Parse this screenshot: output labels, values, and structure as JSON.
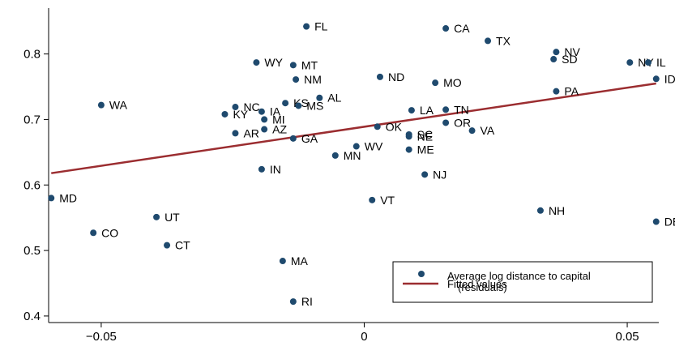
{
  "chart_data": {
    "type": "scatter",
    "title": "",
    "xlabel": "",
    "ylabel": "",
    "xlim": [
      -0.06,
      0.056
    ],
    "ylim": [
      0.39,
      0.87
    ],
    "x_ticks": [
      -0.05,
      0,
      0.05
    ],
    "x_tick_labels": [
      "−0.05",
      "0",
      "0.05"
    ],
    "y_ticks": [
      0.4,
      0.5,
      0.6,
      0.7,
      0.8
    ],
    "y_tick_labels": [
      "0.4",
      "0.5",
      "0.6",
      "0.7",
      "0.8"
    ],
    "grid": false,
    "legend_position": "bottom-right",
    "colors": {
      "points": "#1f4a6e",
      "fit": "#9b2d30"
    },
    "series": [
      {
        "name": "Average log distance to capital\n(residuals)",
        "kind": "scatter",
        "points": [
          {
            "label": "FL",
            "x": -0.011,
            "y": 0.842
          },
          {
            "label": "CA",
            "x": 0.0155,
            "y": 0.839
          },
          {
            "label": "TX",
            "x": 0.0235,
            "y": 0.82
          },
          {
            "label": "NV",
            "x": 0.0365,
            "y": 0.803
          },
          {
            "label": "SD",
            "x": 0.036,
            "y": 0.792
          },
          {
            "label": "NY",
            "x": 0.0505,
            "y": 0.787
          },
          {
            "label": "IL",
            "x": 0.054,
            "y": 0.787
          },
          {
            "label": "ID",
            "x": 0.0555,
            "y": 0.762
          },
          {
            "label": "WY",
            "x": -0.0205,
            "y": 0.787
          },
          {
            "label": "MT",
            "x": -0.0135,
            "y": 0.783
          },
          {
            "label": "NM",
            "x": -0.013,
            "y": 0.761
          },
          {
            "label": "ND",
            "x": 0.003,
            "y": 0.765
          },
          {
            "label": "MO",
            "x": 0.0135,
            "y": 0.756
          },
          {
            "label": "PA",
            "x": 0.0365,
            "y": 0.743
          },
          {
            "label": "AL",
            "x": -0.0085,
            "y": 0.733
          },
          {
            "label": "KS",
            "x": -0.015,
            "y": 0.725
          },
          {
            "label": "MS",
            "x": -0.0125,
            "y": 0.721
          },
          {
            "label": "WA",
            "x": -0.05,
            "y": 0.722
          },
          {
            "label": "NC",
            "x": -0.0245,
            "y": 0.719
          },
          {
            "label": "IA",
            "x": -0.0195,
            "y": 0.712
          },
          {
            "label": "KY",
            "x": -0.0265,
            "y": 0.708
          },
          {
            "label": "MI",
            "x": -0.019,
            "y": 0.7
          },
          {
            "label": "LA",
            "x": 0.009,
            "y": 0.714
          },
          {
            "label": "TN",
            "x": 0.0155,
            "y": 0.715
          },
          {
            "label": "OR",
            "x": 0.0155,
            "y": 0.695
          },
          {
            "label": "OK",
            "x": 0.0025,
            "y": 0.689
          },
          {
            "label": "AZ",
            "x": -0.019,
            "y": 0.685
          },
          {
            "label": "VA",
            "x": 0.0205,
            "y": 0.683
          },
          {
            "label": "AR",
            "x": -0.0245,
            "y": 0.679
          },
          {
            "label": "SC",
            "x": 0.0085,
            "y": 0.677
          },
          {
            "label": "NE",
            "x": 0.0085,
            "y": 0.674
          },
          {
            "label": "GA",
            "x": -0.0135,
            "y": 0.671
          },
          {
            "label": "WV",
            "x": -0.0015,
            "y": 0.659
          },
          {
            "label": "ME",
            "x": 0.0085,
            "y": 0.654
          },
          {
            "label": "MN",
            "x": -0.0055,
            "y": 0.645
          },
          {
            "label": "IN",
            "x": -0.0195,
            "y": 0.624
          },
          {
            "label": "NJ",
            "x": 0.0115,
            "y": 0.616
          },
          {
            "label": "MD",
            "x": -0.0595,
            "y": 0.58
          },
          {
            "label": "VT",
            "x": 0.0015,
            "y": 0.577
          },
          {
            "label": "NH",
            "x": 0.0335,
            "y": 0.561
          },
          {
            "label": "UT",
            "x": -0.0395,
            "y": 0.551
          },
          {
            "label": "DE",
            "x": 0.0555,
            "y": 0.544
          },
          {
            "label": "CO",
            "x": -0.0515,
            "y": 0.527
          },
          {
            "label": "CT",
            "x": -0.0375,
            "y": 0.508
          },
          {
            "label": "MA",
            "x": -0.0155,
            "y": 0.484
          },
          {
            "label": "RI",
            "x": -0.0135,
            "y": 0.422
          }
        ]
      },
      {
        "name": "Fitted values",
        "kind": "line",
        "points": [
          {
            "x": -0.0595,
            "y": 0.618
          },
          {
            "x": 0.0555,
            "y": 0.755
          }
        ]
      }
    ]
  }
}
